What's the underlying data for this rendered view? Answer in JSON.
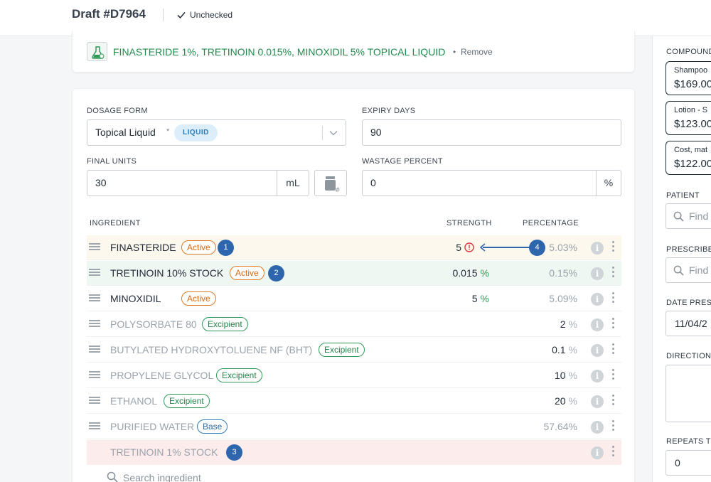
{
  "header": {
    "title": "Draft #D7964",
    "status": "Unchecked"
  },
  "product": {
    "name": "FINASTERIDE 1%, TRETINOIN 0.015%, MINOXIDIL 5% TOPICAL LIQUID",
    "separator": "•",
    "remove_label": "Remove"
  },
  "form": {
    "dosage_form_label": "DOSAGE FORM",
    "dosage_form_value": "Topical Liquid",
    "dosage_form_star": "*",
    "dosage_form_badge": "LIQUID",
    "expiry_label": "EXPIRY DAYS",
    "expiry_value": "90",
    "final_units_label": "FINAL UNITS",
    "final_units_value": "30",
    "final_units_unit": "mL",
    "wastage_label": "WASTAGE PERCENT",
    "wastage_value": "0",
    "wastage_unit": "%"
  },
  "table": {
    "headers": {
      "ingredient": "INGREDIENT",
      "strength": "STRENGTH",
      "percentage": "PERCENTAGE"
    },
    "rows": [
      {
        "name": "FINASTERIDE",
        "tag": "Active",
        "badge": "1",
        "strength": "5",
        "strength_unit": "",
        "percentage": "5.03%",
        "pct_unit": "",
        "warning": true,
        "annotation": "4"
      },
      {
        "name": "TRETINOIN 10% STOCK",
        "tag": "Active",
        "badge": "2",
        "strength": "0.015",
        "strength_unit": "%",
        "percentage": "0.15%",
        "pct_unit": ""
      },
      {
        "name": "MINOXIDIL",
        "tag": "Active",
        "strength": "5",
        "strength_unit": "%",
        "percentage": "5.09%",
        "pct_unit": ""
      },
      {
        "name": "POLYSORBATE 80",
        "tag": "Excipient",
        "percentage": "2",
        "pct_unit": "%"
      },
      {
        "name": "BUTYLATED HYDROXYTOLUENE NF (BHT)",
        "tag": "Excipient",
        "percentage": "0.1",
        "pct_unit": "%"
      },
      {
        "name": "PROPYLENE GLYCOL",
        "tag": "Excipient",
        "percentage": "10",
        "pct_unit": "%"
      },
      {
        "name": "ETHANOL",
        "tag": "Excipient",
        "percentage": "20",
        "pct_unit": "%"
      },
      {
        "name": "PURIFIED WATER",
        "tag": "Base",
        "percentage": "57.64%",
        "pct_unit": ""
      },
      {
        "name": "TRETINOIN 1% STOCK",
        "badge": "3"
      }
    ],
    "info_glyph": "i",
    "search_placeholder": "Search ingredient"
  },
  "sidebar": {
    "compound_label": "COMPOUND",
    "compounds": [
      {
        "name": "Shampoo",
        "price": "$169.00"
      },
      {
        "name": "Lotion - S",
        "price": "$123.00"
      },
      {
        "name": "Cost, mat",
        "price": "$122.00"
      }
    ],
    "patient_label": "PATIENT",
    "patient_placeholder": "Find",
    "prescriber_label": "PRESCRIBER",
    "prescriber_placeholder": "Find",
    "date_label": "DATE PRESC",
    "date_value": "11/04/2",
    "directions_label": "DIRECTIONS",
    "repeats_label": "REPEATS TO",
    "repeats_value": "0"
  },
  "colors": {
    "accent_blue": "#2e66ad",
    "active_orange": "#e17a25",
    "excipient_green": "#2f9a57",
    "warning_red": "#d63a3a"
  }
}
